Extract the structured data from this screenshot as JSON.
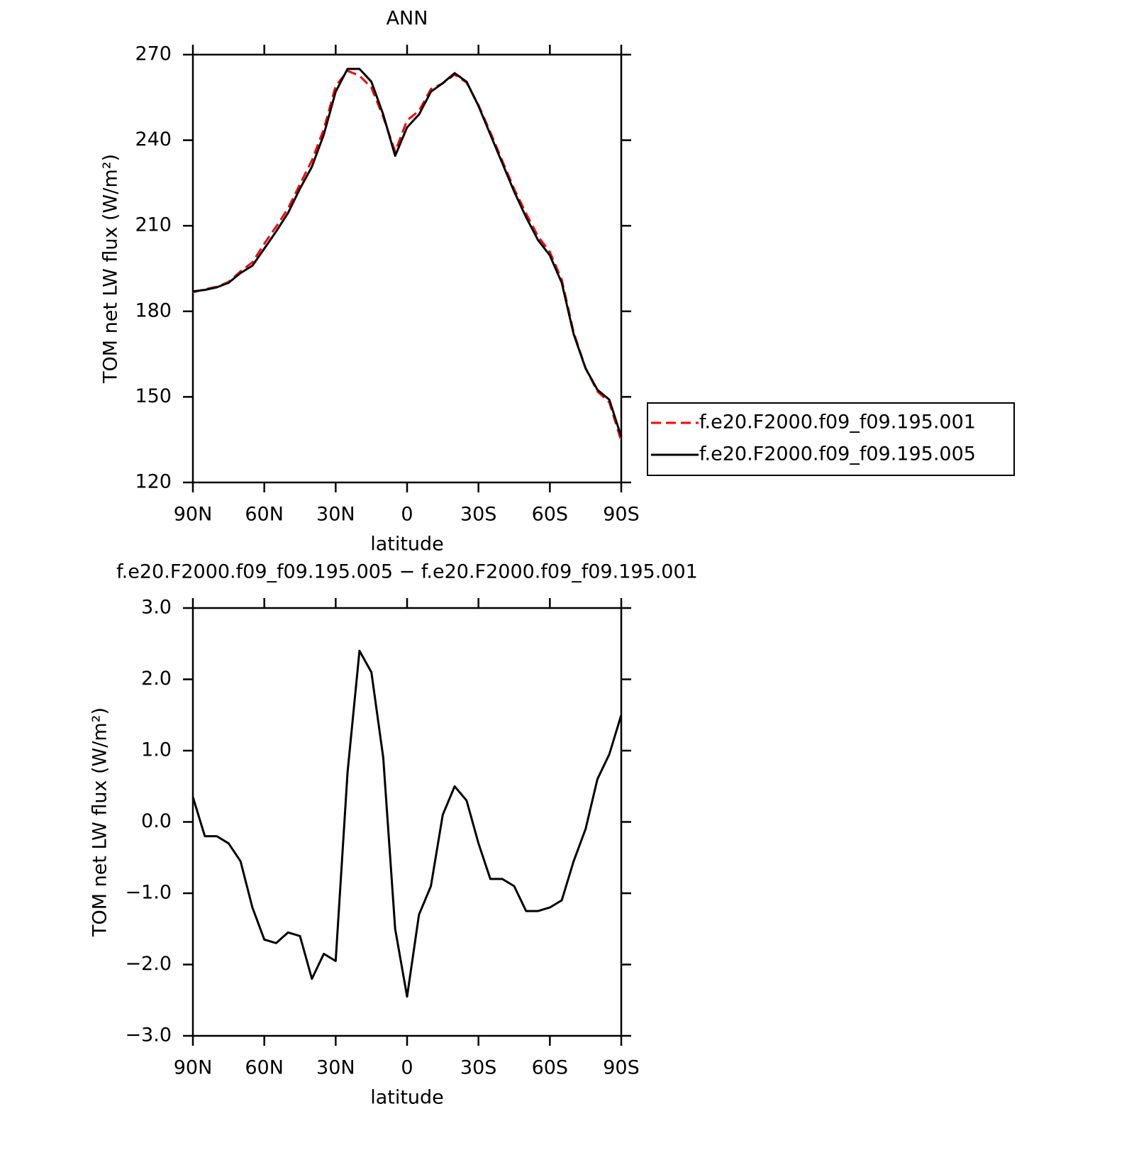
{
  "chart_data": [
    {
      "type": "line",
      "title": "ANN",
      "xlabel": "latitude",
      "ylabel": "TOM net LW flux (W/m²)",
      "x": [
        90,
        85,
        80,
        75,
        70,
        65,
        60,
        55,
        50,
        45,
        40,
        35,
        30,
        25,
        20,
        15,
        10,
        5,
        0,
        -5,
        -10,
        -15,
        -20,
        -25,
        -30,
        -35,
        -40,
        -45,
        -50,
        -55,
        -60,
        -65,
        -70,
        -75,
        -80,
        -85,
        -90
      ],
      "xlim": [
        90,
        -90
      ],
      "xticks": [
        {
          "value": 90,
          "label": "90N"
        },
        {
          "value": 60,
          "label": "60N"
        },
        {
          "value": 30,
          "label": "30N"
        },
        0,
        {
          "value": -30,
          "label": "30S"
        },
        {
          "value": -60,
          "label": "60S"
        },
        {
          "value": -90,
          "label": "90S"
        }
      ],
      "ylim": [
        120,
        270
      ],
      "yticks": [
        120,
        150,
        180,
        210,
        240,
        270
      ],
      "legend": "right",
      "series": [
        {
          "name": "f.e20.F2000.f09_f09.195.001",
          "color": "#ff0000",
          "dash": true,
          "values": [
            186.7,
            187.7,
            188.6,
            190.3,
            194.0,
            197.2,
            203.7,
            209.7,
            216.1,
            224.6,
            232.9,
            243.9,
            259.0,
            264.3,
            262.6,
            258.4,
            248.1,
            236.0,
            247.0,
            250.3,
            257.9,
            259.9,
            263.0,
            260.2,
            252.3,
            242.8,
            232.8,
            222.9,
            214.3,
            206.3,
            200.8,
            191.1,
            172.6,
            160.1,
            151.9,
            148.1,
            134.5
          ]
        },
        {
          "name": "f.e20.F2000.f09_f09.195.005",
          "color": "#000000",
          "dash": false,
          "values": [
            187,
            187.5,
            188.4,
            190,
            193.4,
            196,
            202,
            208,
            214.5,
            223,
            230.7,
            242,
            257,
            265,
            265,
            260.5,
            249,
            234.5,
            244.5,
            249,
            257,
            260,
            263.5,
            260.5,
            252,
            242,
            232,
            222,
            213,
            205,
            199.6,
            190,
            172,
            160,
            152.5,
            149,
            136
          ]
        }
      ]
    },
    {
      "type": "line",
      "title": "f.e20.F2000.f09_f09.195.005 − f.e20.F2000.f09_f09.195.001",
      "xlabel": "latitude",
      "ylabel": "TOM net LW flux (W/m²)",
      "x": [
        90,
        85,
        80,
        75,
        70,
        65,
        60,
        55,
        50,
        45,
        40,
        35,
        30,
        25,
        20,
        15,
        10,
        5,
        0,
        -5,
        -10,
        -15,
        -20,
        -25,
        -30,
        -35,
        -40,
        -45,
        -50,
        -55,
        -60,
        -65,
        -70,
        -75,
        -80,
        -85,
        -90
      ],
      "xlim": [
        90,
        -90
      ],
      "xticks": [
        {
          "value": 90,
          "label": "90N"
        },
        {
          "value": 60,
          "label": "60N"
        },
        {
          "value": 30,
          "label": "30N"
        },
        0,
        {
          "value": -30,
          "label": "30S"
        },
        {
          "value": -60,
          "label": "60S"
        },
        {
          "value": -90,
          "label": "90S"
        }
      ],
      "ylim": [
        -3,
        3
      ],
      "yticks": [
        {
          "value": -3,
          "label": "−3.0"
        },
        {
          "value": -2,
          "label": "−2.0"
        },
        {
          "value": -1,
          "label": "−1.0"
        },
        {
          "value": 0,
          "label": "0.0"
        },
        {
          "value": 1,
          "label": "1.0"
        },
        {
          "value": 2,
          "label": "2.0"
        },
        {
          "value": 3,
          "label": "3.0"
        }
      ],
      "series": [
        {
          "color": "#000000",
          "dash": false,
          "values": [
            0.35,
            -0.2,
            -0.2,
            -0.3,
            -0.55,
            -1.2,
            -1.65,
            -1.7,
            -1.55,
            -1.6,
            -2.2,
            -1.85,
            -1.95,
            0.7,
            2.4,
            2.1,
            0.9,
            -1.5,
            -2.45,
            -1.3,
            -0.9,
            0.1,
            0.5,
            0.3,
            -0.3,
            -0.8,
            -0.8,
            -0.9,
            -1.25,
            -1.25,
            -1.2,
            -1.1,
            -0.55,
            -0.1,
            0.6,
            0.95,
            1.5
          ]
        }
      ]
    }
  ]
}
